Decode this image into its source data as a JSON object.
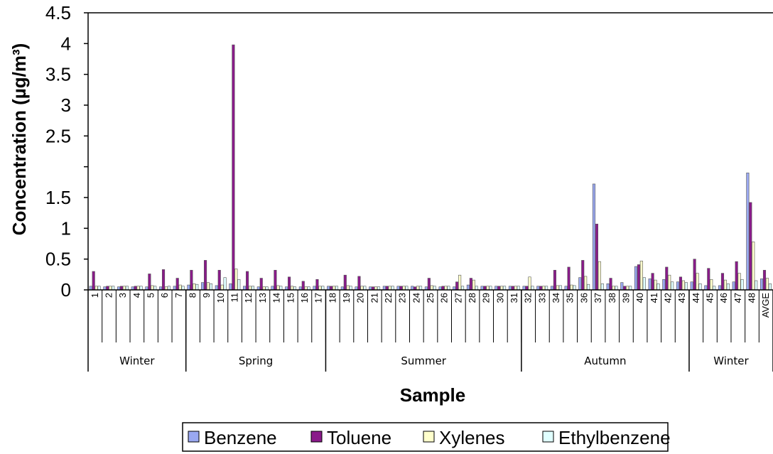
{
  "chart_data": {
    "type": "bar",
    "xlabel": "Sample",
    "ylabel": "Concentration (µg/m³)",
    "yticks": [
      "0",
      "0.5",
      "1",
      "1.5",
      "",
      "2.5",
      "3",
      "3.5",
      "4",
      "4.5"
    ],
    "ylim": [
      0,
      4.5
    ],
    "grid": false,
    "legend_position": "bottom",
    "categories": [
      "1",
      "2",
      "3",
      "4",
      "5",
      "6",
      "7",
      "8",
      "9",
      "10",
      "11",
      "12",
      "13",
      "14",
      "15",
      "16",
      "17",
      "18",
      "19",
      "20",
      "21",
      "22",
      "23",
      "24",
      "25",
      "26",
      "27",
      "28",
      "29",
      "30",
      "31",
      "32",
      "33",
      "34",
      "35",
      "36",
      "37",
      "38",
      "39",
      "40",
      "41",
      "42",
      "43",
      "44",
      "45",
      "46",
      "47",
      "48",
      "AVGE"
    ],
    "season_groups": [
      {
        "label": "Winter",
        "count": 7
      },
      {
        "label": "Spring",
        "count": 10
      },
      {
        "label": "Summer",
        "count": 14
      },
      {
        "label": "Autumn",
        "count": 12
      },
      {
        "label": "Winter",
        "count": 6
      }
    ],
    "series": [
      {
        "name": "Benzene",
        "color": "#9aa8f0",
        "values": [
          0.06,
          0.05,
          0.05,
          0.05,
          0.05,
          0.05,
          0.06,
          0.08,
          0.12,
          0.07,
          0.1,
          0.06,
          0.05,
          0.06,
          0.05,
          0.05,
          0.06,
          0.06,
          0.05,
          0.05,
          0.05,
          0.06,
          0.06,
          0.06,
          0.05,
          0.05,
          0.05,
          0.08,
          0.06,
          0.06,
          0.06,
          0.06,
          0.06,
          0.06,
          0.06,
          0.2,
          1.72,
          0.1,
          0.12,
          0.38,
          0.18,
          0.17,
          0.13,
          0.13,
          0.07,
          0.07,
          0.13,
          1.9,
          0.18
        ]
      },
      {
        "name": "Toluene",
        "color": "#8a1a8a",
        "values": [
          0.3,
          0.06,
          0.06,
          0.06,
          0.26,
          0.33,
          0.19,
          0.32,
          0.48,
          0.32,
          3.98,
          0.3,
          0.19,
          0.32,
          0.21,
          0.14,
          0.17,
          0.06,
          0.24,
          0.22,
          0.05,
          0.06,
          0.06,
          0.05,
          0.19,
          0.06,
          0.13,
          0.19,
          0.06,
          0.06,
          0.06,
          0.06,
          0.06,
          0.32,
          0.37,
          0.48,
          1.07,
          0.19,
          0.06,
          0.41,
          0.27,
          0.37,
          0.21,
          0.5,
          0.35,
          0.27,
          0.46,
          1.42,
          0.32
        ]
      },
      {
        "name": "Xylenes",
        "color": "#ffffcc",
        "values": [
          0.06,
          0.06,
          0.06,
          0.06,
          0.07,
          0.05,
          0.08,
          0.1,
          0.12,
          0.08,
          0.34,
          0.06,
          0.05,
          0.07,
          0.06,
          0.05,
          0.06,
          0.06,
          0.07,
          0.06,
          0.05,
          0.06,
          0.06,
          0.06,
          0.07,
          0.06,
          0.24,
          0.16,
          0.06,
          0.06,
          0.06,
          0.21,
          0.06,
          0.07,
          0.08,
          0.22,
          0.46,
          0.06,
          0.06,
          0.47,
          0.16,
          0.24,
          0.15,
          0.27,
          0.17,
          0.16,
          0.27,
          0.78,
          0.19
        ]
      },
      {
        "name": "Ethylbenzene",
        "color": "#e0ffff",
        "values": [
          0.06,
          0.06,
          0.06,
          0.06,
          0.06,
          0.06,
          0.06,
          0.09,
          0.1,
          0.2,
          0.17,
          0.06,
          0.05,
          0.06,
          0.05,
          0.05,
          0.06,
          0.06,
          0.06,
          0.06,
          0.05,
          0.06,
          0.06,
          0.06,
          0.06,
          0.06,
          0.06,
          0.06,
          0.06,
          0.06,
          0.06,
          0.06,
          0.06,
          0.07,
          0.07,
          0.09,
          0.1,
          0.06,
          0.06,
          0.2,
          0.1,
          0.13,
          0.12,
          0.1,
          0.06,
          0.1,
          0.17,
          0.15,
          0.1
        ]
      }
    ]
  }
}
